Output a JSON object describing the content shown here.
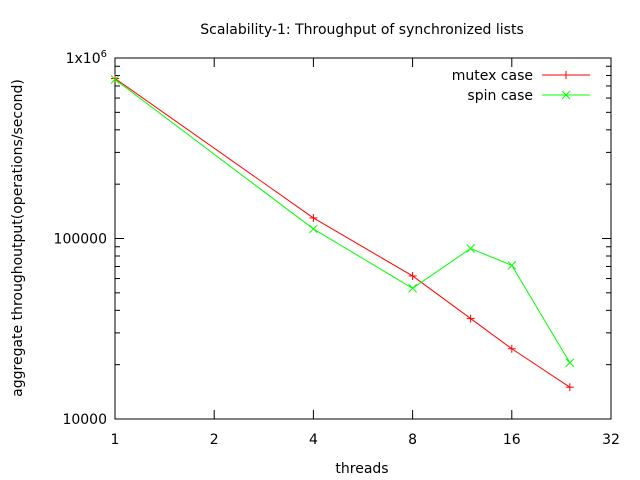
{
  "chart_data": {
    "type": "line",
    "title": "Scalability-1: Throughput of synchronized lists",
    "xlabel": "threads",
    "ylabel": "aggregate throughoutput(operations/second)",
    "x_scale": "log2",
    "y_scale": "log10",
    "xlim": [
      1,
      32
    ],
    "ylim": [
      10000,
      1000000
    ],
    "x_ticks": [
      {
        "value": 1,
        "label": "1"
      },
      {
        "value": 2,
        "label": "2"
      },
      {
        "value": 4,
        "label": "4"
      },
      {
        "value": 8,
        "label": "8"
      },
      {
        "value": 16,
        "label": "16"
      },
      {
        "value": 32,
        "label": "32"
      }
    ],
    "y_ticks": [
      {
        "value": 10000,
        "label": "10000"
      },
      {
        "value": 100000,
        "label": "100000"
      },
      {
        "value": 1000000,
        "label": "1x10",
        "sup": "6"
      }
    ],
    "legend_position": "top-right",
    "series": [
      {
        "name": "mutex case",
        "color": "#ff0000",
        "marker": "plus",
        "x": [
          1,
          4,
          8,
          12,
          16,
          24
        ],
        "y": [
          770000,
          130000,
          62000,
          36000,
          24500,
          15000
        ]
      },
      {
        "name": "spin case",
        "color": "#00ff00",
        "marker": "cross",
        "x": [
          1,
          4,
          8,
          12,
          16,
          24
        ],
        "y": [
          760000,
          113000,
          53000,
          88000,
          71000,
          20500
        ]
      }
    ]
  }
}
